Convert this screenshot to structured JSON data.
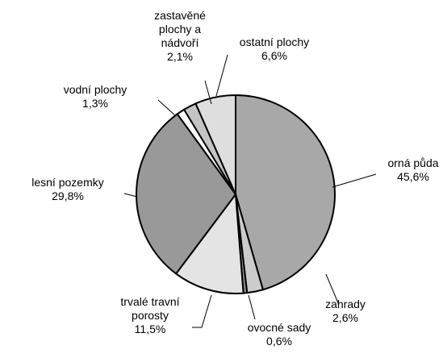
{
  "chart_data": {
    "type": "pie",
    "categories": [
      "orná půda",
      "zahrady",
      "ovocné sady",
      "trvalé travní porosty",
      "lesní pozemky",
      "vodní plochy",
      "zastavěné plochy a nádvoří",
      "ostatní plochy"
    ],
    "values": [
      45.6,
      2.6,
      0.6,
      11.5,
      29.8,
      1.3,
      2.1,
      6.6
    ],
    "value_labels": [
      "45,6%",
      "2,6%",
      "0,6%",
      "11,5%",
      "29,8%",
      "1,3%",
      "2,1%",
      "6,6%"
    ],
    "colors": [
      "#a8a8a8",
      "#cccccc",
      "#8a8a8a",
      "#e4e4e4",
      "#999999",
      "#ffffff",
      "#c4c4c4",
      "#dedede"
    ]
  }
}
